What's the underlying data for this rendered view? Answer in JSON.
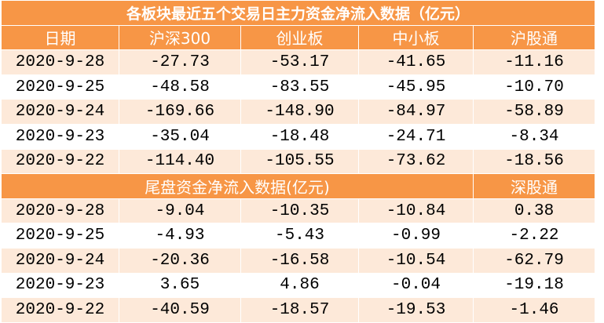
{
  "title": "各板块最近五个交易日主力资金净流入数据（亿元）",
  "header": [
    "日期",
    "沪深300",
    "创业板",
    "中小板",
    "沪股通"
  ],
  "rows": [
    [
      "2020-9-28",
      "-27.73",
      "-53.17",
      "-41.65",
      "-11.16"
    ],
    [
      "2020-9-25",
      "-48.58",
      "-83.55",
      "-45.95",
      "-10.70"
    ],
    [
      "2020-9-24",
      "-169.66",
      "-148.90",
      "-84.97",
      "-58.89"
    ],
    [
      "2020-9-23",
      "-35.04",
      "-18.48",
      "-24.71",
      "-8.34"
    ],
    [
      "2020-9-22",
      "-114.40",
      "-105.55",
      "-73.62",
      "-18.56"
    ]
  ],
  "header2": [
    "尾盘资金净流入数据(亿元)",
    "深股通"
  ],
  "rows2": [
    [
      "2020-9-28",
      "-9.04",
      "-10.35",
      "-10.84",
      "0.38"
    ],
    [
      "2020-9-25",
      "-4.93",
      "-5.43",
      "-0.99",
      "-2.22"
    ],
    [
      "2020-9-24",
      "-20.36",
      "-16.58",
      "-10.54",
      "-62.79"
    ],
    [
      "2020-9-23",
      "3.65",
      "4.86",
      "-0.04",
      "-19.18"
    ],
    [
      "2020-9-22",
      "-40.59",
      "-18.57",
      "-19.53",
      "-1.46"
    ]
  ]
}
